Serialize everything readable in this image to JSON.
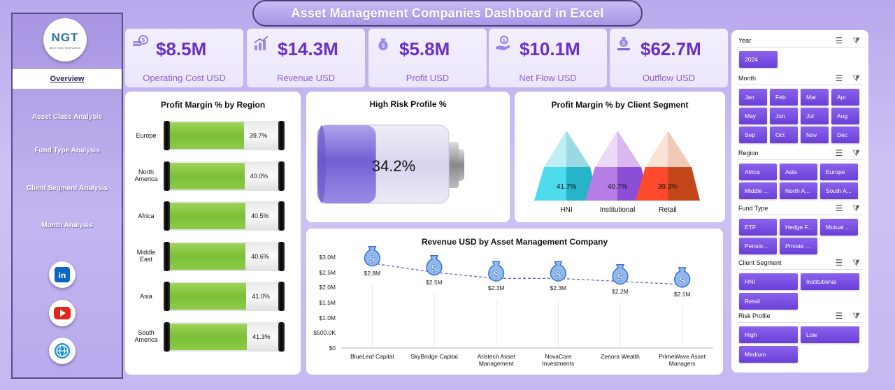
{
  "title": "Asset Management Companies Dashboard in Excel",
  "logo": {
    "main": "NGT",
    "sub": "NEXT GEN TEMPLATES"
  },
  "nav": [
    {
      "label": "Overview"
    },
    {
      "label": "Asset Class Analysis"
    },
    {
      "label": "Fund Type Analysis"
    },
    {
      "label": "Client Segment Analysis"
    },
    {
      "label": "Month Analysis"
    }
  ],
  "social": [
    "linkedin-icon",
    "youtube-icon",
    "globe-icon"
  ],
  "kpis": [
    {
      "value": "$8.5M",
      "label": "Operating Cost USD",
      "icon": "coin-stack-icon"
    },
    {
      "value": "$14.3M",
      "label": "Revenue USD",
      "icon": "growth-chart-icon"
    },
    {
      "value": "$5.8M",
      "label": "Profit USD",
      "icon": "money-bag-icon"
    },
    {
      "value": "$10.1M",
      "label": "Net Flow USD",
      "icon": "hand-coin-icon"
    },
    {
      "value": "$62.7M",
      "label": "Outflow USD",
      "icon": "money-bag-outflow-icon"
    }
  ],
  "chart_data": [
    {
      "type": "bar",
      "title": "Profit Margin % by Region",
      "categories": [
        "Europe",
        "North America",
        "Africa",
        "Middle East",
        "Asia",
        "South America"
      ],
      "category_lines": [
        [
          "Europe"
        ],
        [
          "North",
          "America"
        ],
        [
          "Africa"
        ],
        [
          "Middle",
          "East"
        ],
        [
          "Asia"
        ],
        [
          "South",
          "America"
        ]
      ],
      "values": [
        39.7,
        40.0,
        40.5,
        40.6,
        41.0,
        41.3
      ],
      "labels": [
        "39.7%",
        "40.0%",
        "40.5%",
        "40.6%",
        "41.0%",
        "41.3%"
      ],
      "xlim": [
        0,
        100
      ]
    },
    {
      "type": "gauge",
      "title": "High Risk Profile %",
      "value": 34.2,
      "label": "34.2%"
    },
    {
      "type": "bar",
      "title": "Profit Margin % by Client Segment",
      "categories": [
        "HNI",
        "Institutional",
        "Retail"
      ],
      "values": [
        41.7,
        40.7,
        39.3
      ],
      "labels": [
        "41.7%",
        "40.7%",
        "39.3%"
      ]
    },
    {
      "type": "line",
      "title": "Revenue USD by Asset Management Company",
      "categories": [
        "BlueLeaf Capital",
        "SkyBridge Capital",
        "Aristech Asset Management",
        "NovaCore Investments",
        "Zenora Wealth",
        "PrimeWave Asset Managers"
      ],
      "category_lines": [
        [
          "BlueLeaf Capital"
        ],
        [
          "SkyBridge Capital"
        ],
        [
          "Aristech Asset",
          "Management"
        ],
        [
          "NovaCore",
          "Investments"
        ],
        [
          "Zenora Wealth"
        ],
        [
          "PrimeWave Asset",
          "Managers"
        ]
      ],
      "values": [
        2.8,
        2.5,
        2.3,
        2.3,
        2.2,
        2.1
      ],
      "labels": [
        "$2.8M",
        "$2.5M",
        "$2.3M",
        "$2.3M",
        "$2.2M",
        "$2.1M"
      ],
      "yticks": [
        "$0",
        "$500.0K",
        "$1.0M",
        "$1.5M",
        "$2.0M",
        "$2.5M",
        "$3.0M"
      ],
      "ylim": [
        0,
        3.0
      ]
    }
  ],
  "slicers": {
    "year": {
      "title": "Year",
      "items": [
        "2024"
      ]
    },
    "month": {
      "title": "Month",
      "items": [
        "Jan",
        "Feb",
        "Mar",
        "Apr",
        "May",
        "Jun",
        "Jul",
        "Aug",
        "Sep",
        "Oct",
        "Nov",
        "Dec"
      ]
    },
    "region": {
      "title": "Region",
      "items": [
        "Africa",
        "Asia",
        "Europe",
        "Middle ...",
        "North A...",
        "South A..."
      ]
    },
    "fund_type": {
      "title": "Fund Type",
      "items": [
        "ETF",
        "Hedge F...",
        "Mutual ...",
        "Pensio...",
        "Private ..."
      ]
    },
    "client_segment": {
      "title": "Client Segment",
      "items": [
        "HNI",
        "Institutional",
        "Retail"
      ]
    },
    "risk_profile": {
      "title": "Risk Profile",
      "items": [
        "High",
        "Low",
        "Medium"
      ]
    }
  },
  "colors": {
    "accent": "#6a2fc9",
    "chip": "#7a4fe2",
    "bar": "#8cc84a",
    "line": "#6f5fd0"
  }
}
